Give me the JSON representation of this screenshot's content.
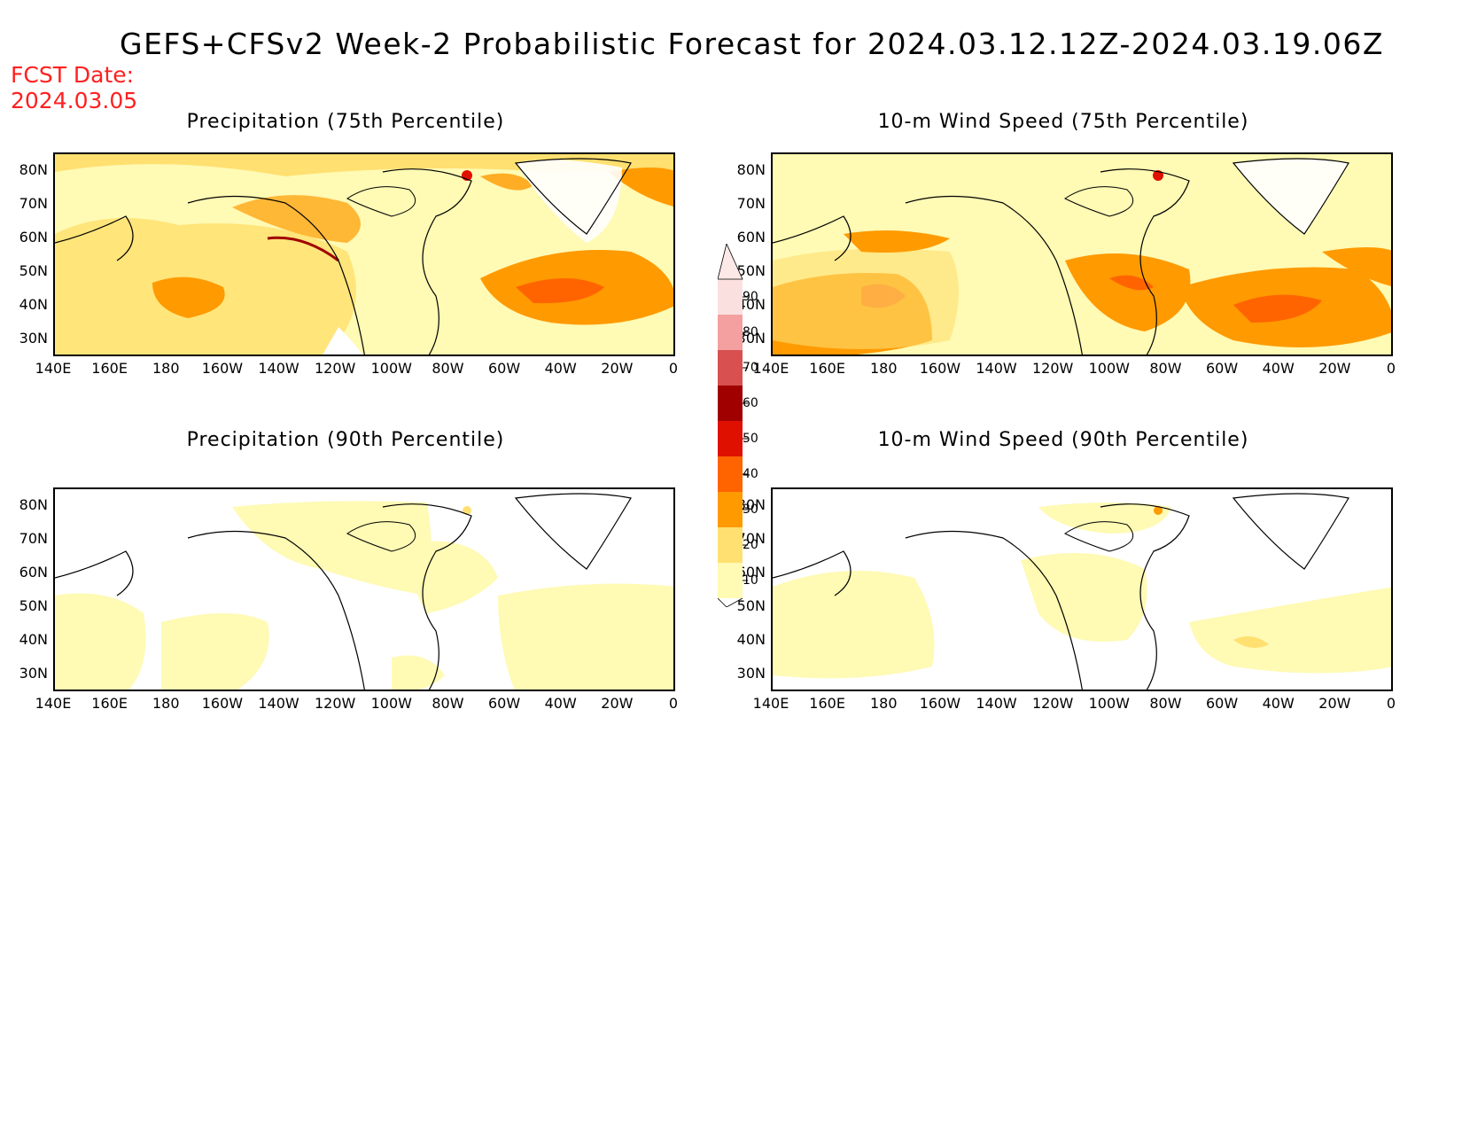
{
  "title": "GEFS+CFSv2 Week-2 Probabilistic Forecast for 2024.03.12.12Z-2024.03.19.06Z",
  "fcst_label": "FCST Date:",
  "fcst_date": "2024.03.05",
  "panels": [
    {
      "title": "Precipitation (75th Percentile)"
    },
    {
      "title": "10-m Wind Speed (75th Percentile)"
    },
    {
      "title": "Precipitation (90th Percentile)"
    },
    {
      "title": "10-m Wind Speed (90th Percentile)"
    }
  ],
  "lat_labels": [
    "80N",
    "70N",
    "60N",
    "50N",
    "40N",
    "30N"
  ],
  "lon_labels": [
    "140E",
    "160E",
    "180",
    "160W",
    "140W",
    "120W",
    "100W",
    "80W",
    "60W",
    "40W",
    "20W",
    "0"
  ],
  "colorbar": {
    "levels": [
      "90",
      "80",
      "70",
      "60",
      "50",
      "40",
      "30",
      "20",
      "10"
    ],
    "colors": [
      "#fbe0e0",
      "#f4a0a0",
      "#d85050",
      "#a00000",
      "#e01000",
      "#ff6400",
      "#ff9a00",
      "#ffe070",
      "#fffab4"
    ]
  }
}
